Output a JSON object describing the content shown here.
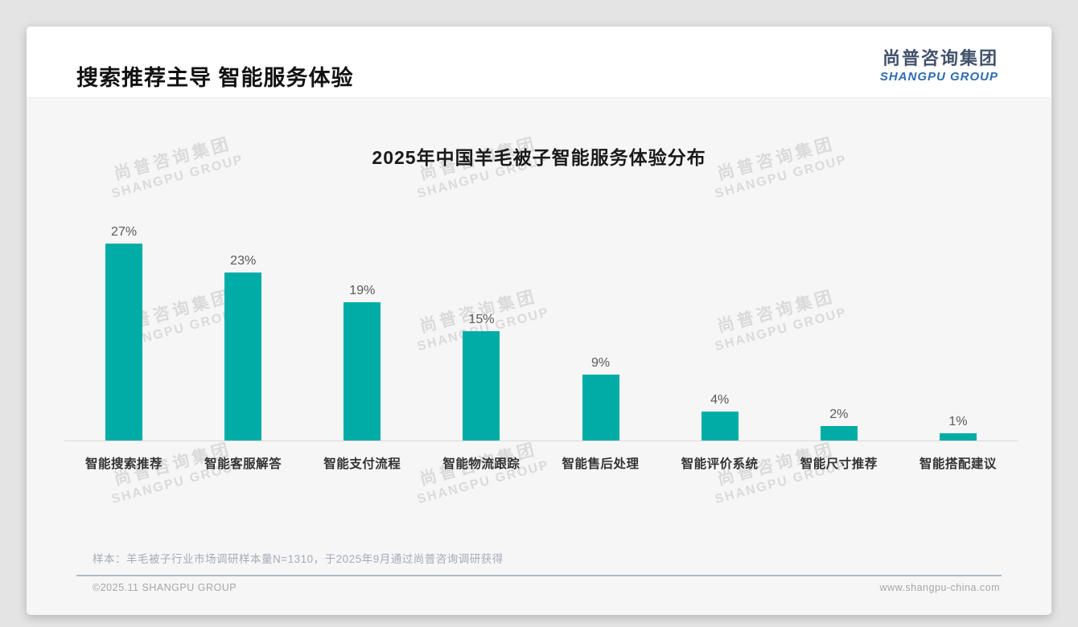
{
  "page": {
    "header": {
      "title": "搜索推荐主导 智能服务体验"
    },
    "logo": {
      "cn": "尚普咨询集团",
      "en": "SHANGPU GROUP"
    },
    "watermark": {
      "cn": "尚普咨询集团",
      "en": "SHANGPU GROUP"
    },
    "footer": {
      "note": "样本：羊毛被子行业市场调研样本量N=1310，于2025年9月通过尚普咨询调研获得",
      "copyright": "©2025.11 SHANGPU GROUP",
      "website": "www.shangpu-china.com"
    }
  },
  "chart_data": {
    "type": "bar",
    "title": "2025年中国羊毛被子智能服务体验分布",
    "categories": [
      "智能搜索推荐",
      "智能客服解答",
      "智能支付流程",
      "智能物流跟踪",
      "智能售后处理",
      "智能评价系统",
      "智能尺寸推荐",
      "智能搭配建议"
    ],
    "values": [
      27,
      23,
      19,
      15,
      9,
      4,
      2,
      1
    ],
    "unit": "%",
    "value_labels": [
      "27%",
      "23%",
      "19%",
      "15%",
      "9%",
      "4%",
      "2%",
      "1%"
    ],
    "bar_color": "#00ADA6",
    "axis_color": "#d9d9d9",
    "ylim": [
      0,
      30
    ],
    "grid": false,
    "legend": "none",
    "data_labels": true
  }
}
